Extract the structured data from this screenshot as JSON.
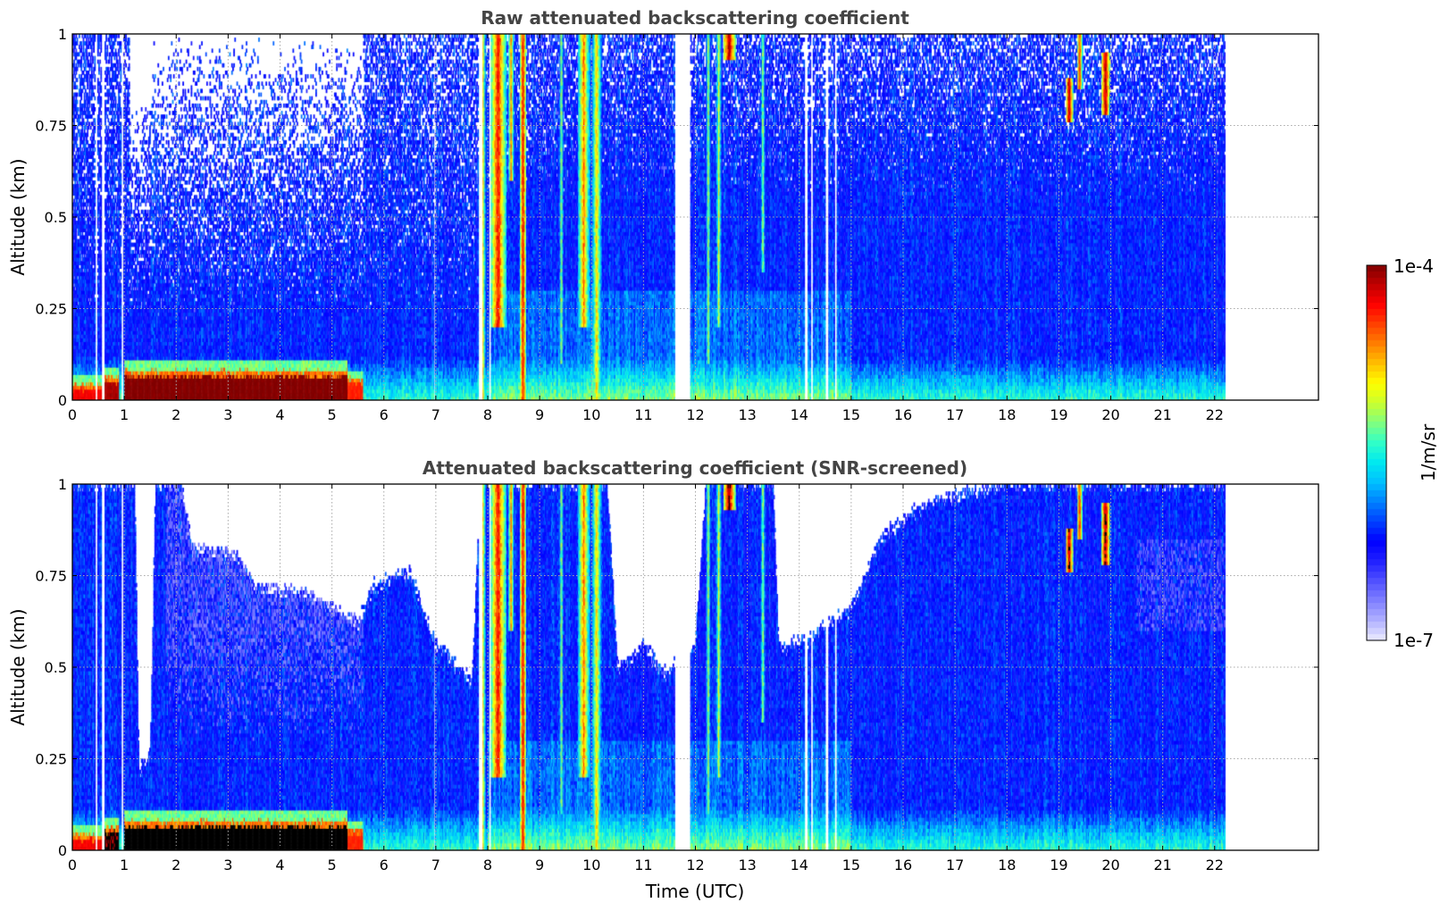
{
  "chart_data": [
    {
      "type": "heatmap",
      "id": "raw",
      "title": "Raw attenuated backscattering coefficient",
      "xlabel": "",
      "ylabel": "Altitude (km)",
      "xlim": [
        0,
        24
      ],
      "ylim": [
        0,
        1
      ],
      "xticks": [
        0,
        1,
        2,
        3,
        4,
        5,
        6,
        7,
        8,
        9,
        10,
        11,
        12,
        13,
        14,
        15,
        16,
        17,
        18,
        19,
        20,
        21,
        22
      ],
      "yticks": [
        0,
        0.25,
        0.5,
        0.75,
        1
      ],
      "ytick_labels": [
        "0",
        "0.25",
        "0.5",
        "0.75",
        "1"
      ],
      "grid": true,
      "screened": false
    },
    {
      "type": "heatmap",
      "id": "screened",
      "title": "Attenuated backscattering coefficient (SNR-screened)",
      "xlabel": "Time (UTC)",
      "ylabel": "Altitude (km)",
      "xlim": [
        0,
        24
      ],
      "ylim": [
        0,
        1
      ],
      "xticks": [
        0,
        1,
        2,
        3,
        4,
        5,
        6,
        7,
        8,
        9,
        10,
        11,
        12,
        13,
        14,
        15,
        16,
        17,
        18,
        19,
        20,
        21,
        22
      ],
      "yticks": [
        0,
        0.25,
        0.5,
        0.75,
        1
      ],
      "ytick_labels": [
        "0",
        "0.25",
        "0.5",
        "0.75",
        "1"
      ],
      "grid": true,
      "screened": true,
      "snr_top_envelope_km": [
        [
          0,
          1
        ],
        [
          1.2,
          1
        ],
        [
          1.28,
          0.22
        ],
        [
          1.5,
          0.26
        ],
        [
          1.6,
          1
        ],
        [
          2.1,
          1
        ],
        [
          2.3,
          0.82
        ],
        [
          3.2,
          0.8
        ],
        [
          3.5,
          0.72
        ],
        [
          4.5,
          0.7
        ],
        [
          5.5,
          0.62
        ],
        [
          5.8,
          0.72
        ],
        [
          6.5,
          0.76
        ],
        [
          7.0,
          0.56
        ],
        [
          7.7,
          0.46
        ],
        [
          7.85,
          1
        ],
        [
          10.3,
          1
        ],
        [
          10.5,
          0.5
        ],
        [
          11.0,
          0.56
        ],
        [
          11.4,
          0.48
        ],
        [
          12.0,
          0.56
        ],
        [
          12.2,
          1
        ],
        [
          13.5,
          1
        ],
        [
          13.6,
          0.55
        ],
        [
          14.2,
          0.58
        ],
        [
          15.0,
          0.66
        ],
        [
          15.6,
          0.86
        ],
        [
          16.5,
          0.95
        ],
        [
          18,
          1
        ],
        [
          22.2,
          1
        ]
      ]
    }
  ],
  "data_extent": {
    "time_hours": [
      0,
      22.2
    ],
    "altitude_km": [
      0,
      1
    ]
  },
  "colorbar": {
    "label": "1/m/sr",
    "max_label": "1e-4",
    "min_label": "1e-7",
    "log_range": [
      -7,
      -4
    ],
    "colors": [
      "#ececff",
      "#b0b0ff",
      "#8080ff",
      "#5050ff",
      "#2020ff",
      "#0000ff",
      "#0040ff",
      "#0080ff",
      "#00c0ff",
      "#00e8f0",
      "#30ffc8",
      "#80ff80",
      "#c8ff30",
      "#ffff00",
      "#ffc000",
      "#ff8000",
      "#ff4000",
      "#ff0000",
      "#c00000",
      "#800000"
    ],
    "overflow_color_screened": "#000000"
  },
  "features": {
    "data_gaps_hours": [
      [
        0.44,
        0.48
      ],
      [
        0.56,
        0.62
      ],
      [
        0.94,
        0.99
      ],
      [
        6.95,
        6.98
      ],
      [
        7.82,
        7.9
      ],
      [
        8.02,
        8.05
      ],
      [
        11.6,
        11.9
      ],
      [
        14.1,
        14.16
      ],
      [
        14.22,
        14.26
      ],
      [
        14.5,
        14.56
      ],
      [
        14.68,
        14.72
      ]
    ],
    "boundary_layer": [
      {
        "t0": 0.0,
        "t1": 0.62,
        "top_km": 0.03,
        "log_value": -4.3
      },
      {
        "t0": 0.62,
        "t1": 0.9,
        "top_km": 0.05,
        "log_value": -4.1
      },
      {
        "t0": 1.0,
        "t1": 5.3,
        "top_km": 0.065,
        "log_value": -4.0
      },
      {
        "t0": 5.3,
        "t1": 5.6,
        "top_km": 0.045,
        "log_value": -4.4
      }
    ],
    "cloud_streaks": [
      {
        "t": 7.9,
        "w": 0.06,
        "zmin": 0.0,
        "zmax": 1,
        "log_value": -4.7
      },
      {
        "t": 8.2,
        "w": 0.15,
        "zmin": 0.2,
        "zmax": 1,
        "log_value": -4.3
      },
      {
        "t": 8.45,
        "w": 0.05,
        "zmin": 0.6,
        "zmax": 1,
        "log_value": -4.6
      },
      {
        "t": 8.68,
        "w": 0.06,
        "zmin": 0.0,
        "zmax": 1,
        "log_value": -4.2
      },
      {
        "t": 9.42,
        "w": 0.04,
        "zmin": 0.1,
        "zmax": 1,
        "log_value": -5.0
      },
      {
        "t": 9.85,
        "w": 0.12,
        "zmin": 0.2,
        "zmax": 1,
        "log_value": -4.6
      },
      {
        "t": 10.1,
        "w": 0.1,
        "zmin": 0.0,
        "zmax": 1,
        "log_value": -4.8
      },
      {
        "t": 12.25,
        "w": 0.05,
        "zmin": 0.1,
        "zmax": 1,
        "log_value": -5.1
      },
      {
        "t": 12.45,
        "w": 0.06,
        "zmin": 0.2,
        "zmax": 1,
        "log_value": -5.0
      },
      {
        "t": 12.65,
        "w": 0.12,
        "zmin": 0.93,
        "zmax": 1,
        "log_value": -4.05
      },
      {
        "t": 13.3,
        "w": 0.05,
        "zmin": 0.35,
        "zmax": 1,
        "log_value": -5.1
      },
      {
        "t": 19.2,
        "w": 0.07,
        "zmin": 0.76,
        "zmax": 0.88,
        "log_value": -4.05
      },
      {
        "t": 19.4,
        "w": 0.05,
        "zmin": 0.85,
        "zmax": 1,
        "log_value": -4.3
      },
      {
        "t": 19.9,
        "w": 0.08,
        "zmin": 0.78,
        "zmax": 0.95,
        "log_value": -4.05
      }
    ]
  }
}
